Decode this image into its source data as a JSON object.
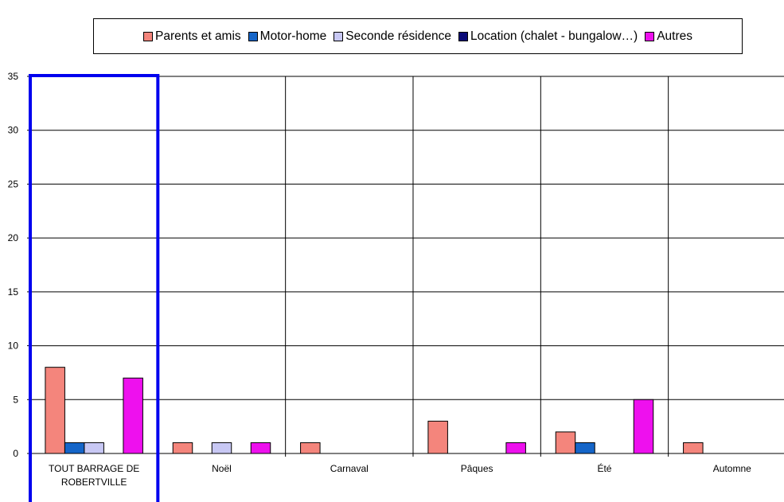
{
  "chart_data": {
    "type": "bar",
    "categories": [
      "TOUT BARRAGE DE ROBERTVILLE",
      "Noël",
      "Carnaval",
      "Pâques",
      "Été",
      "Automne"
    ],
    "category_lines": [
      [
        "TOUT BARRAGE DE",
        "ROBERTVILLE"
      ],
      [
        "Noël"
      ],
      [
        "Carnaval"
      ],
      [
        "Pâques"
      ],
      [
        "Été"
      ],
      [
        "Automne"
      ]
    ],
    "series": [
      {
        "name": "Parents et amis",
        "color": "#f4857c",
        "values": [
          8,
          1,
          1,
          3,
          2,
          1
        ]
      },
      {
        "name": "Motor-home",
        "color": "#1565c8",
        "values": [
          1,
          0,
          0,
          0,
          1,
          0
        ]
      },
      {
        "name": "Seconde résidence",
        "color": "#c8c8f4",
        "values": [
          1,
          1,
          0,
          0,
          0,
          0
        ]
      },
      {
        "name": "Location (chalet - bungalow…)",
        "color": "#0a0a78",
        "values": [
          0,
          0,
          0,
          0,
          0,
          0
        ]
      },
      {
        "name": "Autres",
        "color": "#ee10ee",
        "values": [
          7,
          1,
          0,
          1,
          5,
          0
        ]
      }
    ],
    "yticks": [
      0,
      5,
      10,
      15,
      20,
      25,
      30,
      35
    ],
    "ylim": [
      0,
      35
    ],
    "grid": true,
    "legend_position": "top",
    "highlight_category": "TOUT BARRAGE DE ROBERTVILLE",
    "highlight_color": "#0000ee"
  }
}
